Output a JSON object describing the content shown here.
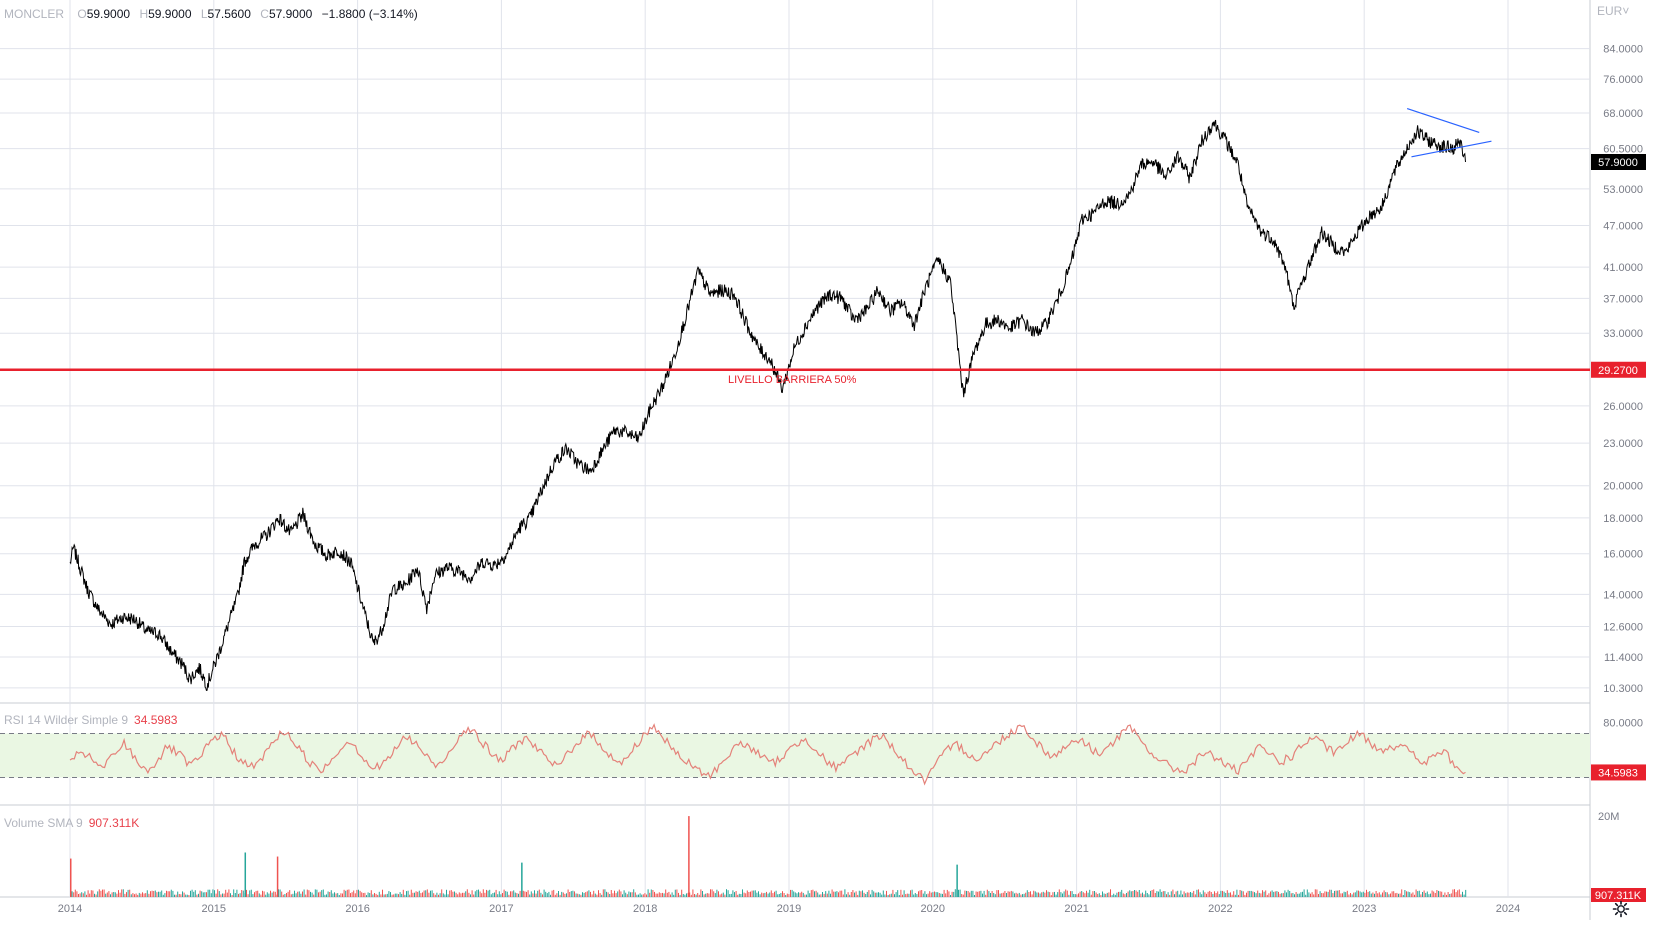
{
  "header": {
    "symbol": "MONCLER",
    "open_label": "O",
    "open": "59.9000",
    "high_label": "H",
    "high": "59.9000",
    "low_label": "L",
    "low": "57.5600",
    "close_label": "C",
    "close": "57.9000",
    "change": "−1.8800 (−3.14%)"
  },
  "currency": "EUR",
  "currency_chevron": "chevron-down-icon",
  "settings_icon": "gear-icon",
  "colors": {
    "grid": "#e0e3eb",
    "price_line": "#000000",
    "barrier": "#e8212d",
    "triangle": "#2962ff",
    "rsi_line": "#e4827a",
    "rsi_band": "#eaf7e3",
    "volume_up": "#26a69a",
    "volume_down": "#ef5350"
  },
  "chart_data": [
    {
      "type": "line",
      "pane": "price",
      "scale": "log",
      "ylim": [
        9.8,
        96
      ],
      "x_range": [
        "2014-01-01",
        "2024-06-15"
      ],
      "x_ticks": [
        "2014",
        "2015",
        "2016",
        "2017",
        "2018",
        "2019",
        "2020",
        "2021",
        "2022",
        "2023",
        "2024"
      ],
      "y_ticks": [
        "10.3000",
        "11.4000",
        "12.6000",
        "14.0000",
        "16.0000",
        "18.0000",
        "20.0000",
        "23.0000",
        "26.0000",
        "33.0000",
        "37.0000",
        "41.0000",
        "47.0000",
        "53.0000",
        "60.5000",
        "68.0000",
        "76.0000",
        "84.0000"
      ],
      "series": [
        {
          "x": [
            "2014-01-01",
            "2014-01-10",
            "2014-02-15",
            "2014-03-15",
            "2014-04-15",
            "2014-05-15",
            "2014-06-15",
            "2014-07-15",
            "2014-08-15",
            "2014-09-15",
            "2014-10-15",
            "2014-11-01",
            "2014-11-25",
            "2014-12-15",
            "2015-01-15",
            "2015-02-15",
            "2015-03-01",
            "2015-03-20",
            "2015-04-15",
            "2015-05-15",
            "2015-06-15",
            "2015-07-15",
            "2015-08-15",
            "2015-09-15",
            "2015-10-15",
            "2015-11-15",
            "2015-12-15",
            "2016-01-15",
            "2016-02-10",
            "2016-03-01",
            "2016-04-01",
            "2016-05-01",
            "2016-06-01",
            "2016-06-25",
            "2016-07-15",
            "2016-08-15",
            "2016-09-15",
            "2016-10-15",
            "2016-11-15",
            "2016-12-15",
            "2017-01-15",
            "2017-02-15",
            "2017-03-15",
            "2017-04-15",
            "2017-05-15",
            "2017-06-15",
            "2017-07-15",
            "2017-08-15",
            "2017-09-15",
            "2017-10-15",
            "2017-11-15",
            "2017-12-15",
            "2018-01-15",
            "2018-02-15",
            "2018-03-15",
            "2018-04-15",
            "2018-05-15",
            "2018-06-15",
            "2018-07-15",
            "2018-08-15",
            "2018-09-15",
            "2018-10-15",
            "2018-11-15",
            "2018-12-15",
            "2018-12-25",
            "2019-01-15",
            "2019-02-15",
            "2019-03-15",
            "2019-04-15",
            "2019-05-15",
            "2019-06-15",
            "2019-07-15",
            "2019-08-15",
            "2019-09-15",
            "2019-10-15",
            "2019-11-15",
            "2019-12-15",
            "2020-01-15",
            "2020-02-15",
            "2020-03-01",
            "2020-03-18",
            "2020-04-15",
            "2020-05-15",
            "2020-06-15",
            "2020-07-15",
            "2020-08-15",
            "2020-09-15",
            "2020-10-15",
            "2020-11-15",
            "2020-12-15",
            "2021-01-15",
            "2021-02-15",
            "2021-03-15",
            "2021-04-15",
            "2021-05-15",
            "2021-06-15",
            "2021-07-15",
            "2021-08-15",
            "2021-09-15",
            "2021-10-15",
            "2021-11-15",
            "2021-12-15",
            "2022-01-15",
            "2022-02-15",
            "2022-03-10",
            "2022-04-15",
            "2022-05-15",
            "2022-06-15",
            "2022-07-05",
            "2022-08-15",
            "2022-09-15",
            "2022-10-15",
            "2022-11-15",
            "2022-12-15",
            "2023-01-15",
            "2023-02-15",
            "2023-03-15",
            "2023-04-15",
            "2023-05-15",
            "2023-06-15",
            "2023-07-15",
            "2023-08-15",
            "2023-09-01",
            "2023-09-15"
          ],
          "y": [
            15.5,
            16.3,
            14.2,
            13.3,
            12.7,
            13.0,
            12.9,
            12.4,
            12.3,
            11.6,
            11.1,
            10.6,
            11.0,
            10.4,
            11.6,
            13.1,
            13.8,
            15.6,
            16.5,
            17.0,
            18.0,
            17.1,
            18.2,
            16.5,
            15.9,
            16.2,
            15.5,
            13.4,
            11.9,
            12.4,
            14.3,
            14.4,
            15.3,
            13.4,
            14.9,
            15.3,
            15.1,
            14.8,
            15.6,
            15.4,
            16.0,
            17.4,
            18.0,
            19.8,
            21.6,
            22.6,
            21.5,
            21.0,
            22.5,
            24.0,
            23.8,
            23.3,
            25.8,
            27.8,
            30.5,
            35.0,
            40.5,
            37.5,
            38.0,
            37.5,
            34.0,
            31.5,
            30.2,
            27.5,
            28.7,
            31.5,
            34.0,
            36.0,
            37.5,
            37.0,
            34.5,
            35.5,
            38.0,
            35.5,
            36.5,
            34.0,
            38.5,
            42.0,
            39.0,
            33.0,
            27.0,
            31.0,
            34.0,
            34.5,
            33.5,
            34.5,
            33.0,
            34.0,
            37.0,
            41.0,
            48.0,
            49.0,
            51.0,
            50.5,
            52.0,
            57.5,
            58.0,
            55.0,
            59.0,
            55.0,
            62.0,
            66.0,
            62.0,
            57.5,
            50.0,
            46.0,
            45.0,
            41.0,
            36.0,
            41.5,
            46.0,
            44.0,
            43.0,
            46.0,
            48.5,
            50.0,
            55.5,
            60.0,
            64.0,
            62.0,
            61.0,
            60.5,
            62.0,
            57.9
          ]
        }
      ],
      "annotations": [
        {
          "label": "LIVELLO BARRIERA 50%",
          "y": 29.27,
          "price_tag": "29.2700"
        },
        {
          "label": "last_price",
          "price_tag": "57.9000",
          "y": 57.9
        }
      ],
      "triangle_pattern": {
        "upper": {
          "x": [
            "2023-04-20",
            "2023-10-20"
          ],
          "y": [
            69.0,
            63.8
          ]
        },
        "lower": {
          "x": [
            "2023-05-01",
            "2023-11-20"
          ],
          "y": [
            58.9,
            62.0
          ]
        }
      }
    },
    {
      "type": "line",
      "pane": "rsi",
      "label": "RSI 14 Wilder Simple 9",
      "last_value": "34.5983",
      "ylim": [
        5,
        95
      ],
      "band": [
        30,
        70
      ],
      "y_ticks": [
        "80.0000"
      ],
      "series": [
        {
          "name": "RSI",
          "x_range": [
            "2014-01-01",
            "2023-09-15"
          ],
          "y": [
            42,
            55,
            46,
            38,
            50,
            61,
            48,
            36,
            44,
            58,
            52,
            41,
            47,
            63,
            70,
            55,
            43,
            39,
            51,
            66,
            72,
            58,
            46,
            35,
            44,
            57,
            64,
            49,
            38,
            42,
            55,
            67,
            61,
            48,
            40,
            52,
            69,
            75,
            63,
            51,
            45,
            58,
            66,
            59,
            47,
            39,
            52,
            63,
            70,
            61,
            49,
            42,
            55,
            68,
            77,
            64,
            52,
            44,
            37,
            31,
            40,
            53,
            61,
            57,
            48,
            43,
            50,
            59,
            66,
            55,
            44,
            38,
            47,
            56,
            63,
            69,
            58,
            46,
            35,
            27,
            41,
            54,
            60,
            52,
            47,
            55,
            64,
            71,
            78,
            66,
            55,
            49,
            58,
            65,
            60,
            52,
            57,
            68,
            75,
            63,
            52,
            44,
            38,
            36,
            45,
            53,
            48,
            41,
            35,
            47,
            58,
            51,
            44,
            50,
            60,
            67,
            58,
            52,
            61,
            70,
            64,
            55,
            58,
            60,
            52,
            43,
            48,
            55,
            40,
            34.6
          ]
        }
      ]
    },
    {
      "type": "bar",
      "pane": "volume",
      "label": "Volume SMA 9",
      "last_value": "907.311K",
      "y_ticks": [
        "20M"
      ],
      "value_tag": "907.311K",
      "unit": "M",
      "spikes": [
        {
          "x": "2014-01-01",
          "value": 9.5
        },
        {
          "x": "2015-03-20",
          "value": 11.0
        },
        {
          "x": "2015-06-10",
          "value": 10.0
        },
        {
          "x": "2017-02-20",
          "value": 8.5
        },
        {
          "x": "2018-04-20",
          "value": 20.0
        },
        {
          "x": "2020-03-01",
          "value": 8.0
        }
      ],
      "baseline_value": 1.6
    }
  ]
}
